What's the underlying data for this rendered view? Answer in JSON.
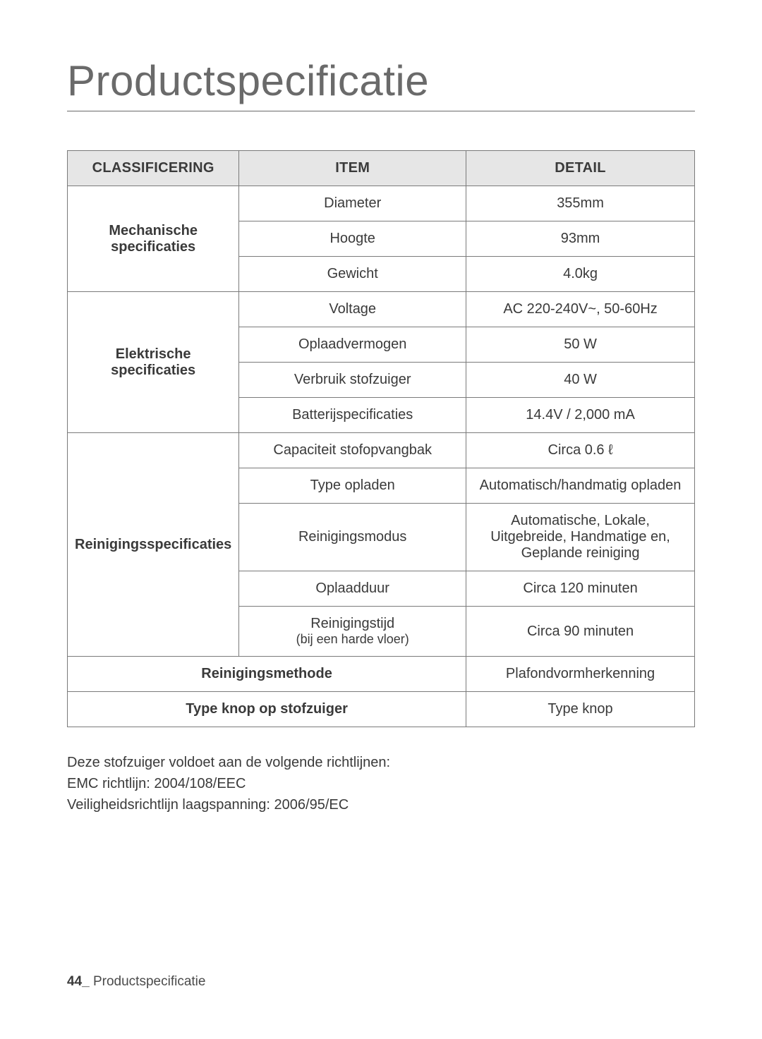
{
  "title": "Productspecificatie",
  "headers": {
    "classification": "CLASSIFICERING",
    "item": "ITEM",
    "detail": "DETAIL"
  },
  "sections": [
    {
      "label": "Mechanische specificaties",
      "rows": [
        {
          "item": "Diameter",
          "detail": "355mm"
        },
        {
          "item": "Hoogte",
          "detail": "93mm"
        },
        {
          "item": "Gewicht",
          "detail": "4.0kg"
        }
      ]
    },
    {
      "label": "Elektrische specificaties",
      "rows": [
        {
          "item": "Voltage",
          "detail": "AC 220-240V~, 50-60Hz"
        },
        {
          "item": "Oplaadvermogen",
          "detail": "50 W"
        },
        {
          "item": "Verbruik stofzuiger",
          "detail": "40 W"
        },
        {
          "item": "Batterijspecificaties",
          "detail": "14.4V / 2,000 mA"
        }
      ]
    },
    {
      "label": "Reinigingsspecificaties",
      "rows": [
        {
          "item": "Capaciteit stofopvangbak",
          "detail": "Circa 0.6 ℓ"
        },
        {
          "item": "Type opladen",
          "detail": "Automatisch/handmatig opladen"
        },
        {
          "item": "Reinigingsmodus",
          "detail": "Automatische, Lokale, Uitgebreide, Handmatige en, Geplande reiniging"
        },
        {
          "item": "Oplaadduur",
          "detail": "Circa 120 minuten"
        },
        {
          "item": "Reinigingstijd",
          "item_sub": "(bij een harde vloer)",
          "detail": "Circa 90 minuten"
        }
      ]
    }
  ],
  "merged_rows": [
    {
      "label": "Reinigingsmethode",
      "detail": "Plafondvormherkenning"
    },
    {
      "label": "Type knop op stofzuiger",
      "detail": "Type knop"
    }
  ],
  "notes": {
    "line1": "Deze stofzuiger voldoet aan de volgende richtlijnen:",
    "line2": "EMC richtlijn: 2004/108/EEC",
    "line3": "Veiligheidsrichtlijn laagspanning: 2006/95/EC"
  },
  "footer": {
    "page": "44_",
    "section": "Productspecificatie"
  }
}
